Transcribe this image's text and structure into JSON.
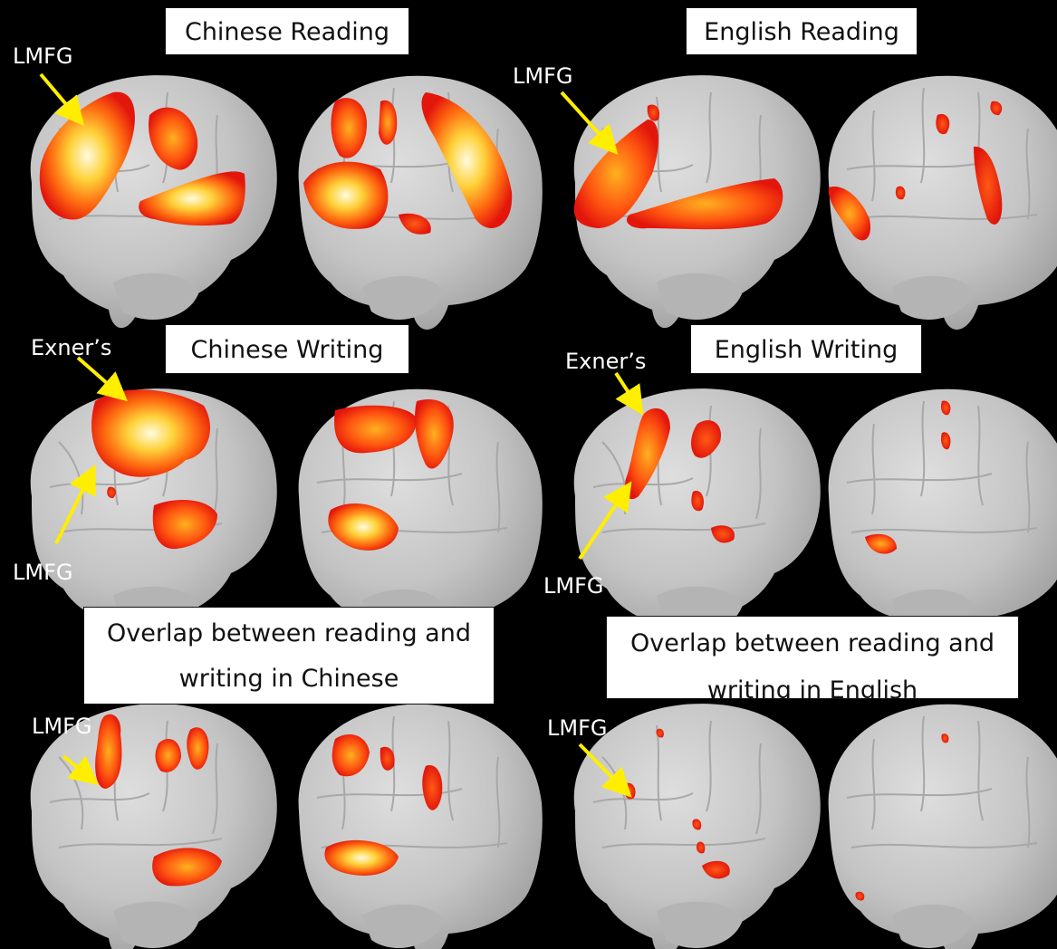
{
  "titles": {
    "chinese_reading": "Chinese Reading",
    "english_reading": "English Reading",
    "chinese_writing": "Chinese Writing",
    "english_writing": "English Writing",
    "overlap_chinese_line1": "Overlap between reading and",
    "overlap_chinese_line2": "writing in Chinese",
    "overlap_english_line1": "Overlap between reading and",
    "overlap_english_line2": "writing in English"
  },
  "annotations": {
    "lmfg": "LMFG",
    "exner": "Exner’s"
  },
  "colors": {
    "background": "#000000",
    "brain": "#c9c9c9",
    "activation_low": "#e8230f",
    "activation_mid": "#ff8a10",
    "activation_high": "#fff6c8",
    "arrow": "#ffee00"
  }
}
